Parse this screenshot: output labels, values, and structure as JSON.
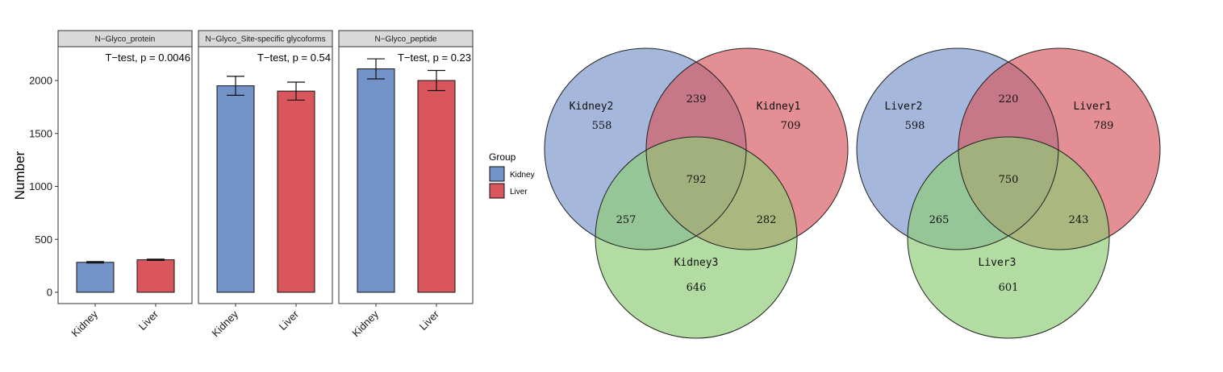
{
  "chart_data": [
    {
      "type": "bar",
      "ylabel": "Number",
      "ylim": [
        0,
        2300
      ],
      "yticks": [
        0,
        500,
        1000,
        1500,
        2000
      ],
      "categories": [
        "Kidney",
        "Liver"
      ],
      "colors": {
        "Kidney": "#7393c8",
        "Liver": "#d9575c"
      },
      "grid": false,
      "legend": {
        "title": "Group",
        "entries": [
          "Kidney",
          "Liver"
        ],
        "placement": "right"
      },
      "panels": [
        {
          "title": "N−Glyco_protein",
          "stat": "T−test, p = 0.0046",
          "values": [
            283,
            307
          ],
          "errors": [
            7,
            6
          ]
        },
        {
          "title": "N−Glyco_Site-specific glycoforms",
          "stat": "T−test, p = 0.54",
          "values": [
            1950,
            1900
          ],
          "errors": [
            90,
            85
          ]
        },
        {
          "title": "N−Glyco_peptide",
          "stat": "T−test, p = 0.23",
          "values": [
            2110,
            2000
          ],
          "errors": [
            95,
            95
          ]
        }
      ]
    },
    {
      "type": "venn",
      "sets": [
        {
          "label": "Kidney2",
          "only": "558",
          "color": "#7a96cc"
        },
        {
          "label": "Kidney1",
          "only": "709",
          "color": "#d65a62"
        },
        {
          "label": "Kidney3",
          "only": "646",
          "color": "#8fcc78"
        }
      ],
      "overlaps": {
        "top": "239",
        "center": "792",
        "left": "257",
        "right": "282"
      }
    },
    {
      "type": "venn",
      "sets": [
        {
          "label": "Liver2",
          "only": "598",
          "color": "#7a96cc"
        },
        {
          "label": "Liver1",
          "only": "789",
          "color": "#d65a62"
        },
        {
          "label": "Liver3",
          "only": "601",
          "color": "#8fcc78"
        }
      ],
      "overlaps": {
        "top": "220",
        "center": "750",
        "left": "265",
        "right": "243"
      }
    }
  ]
}
